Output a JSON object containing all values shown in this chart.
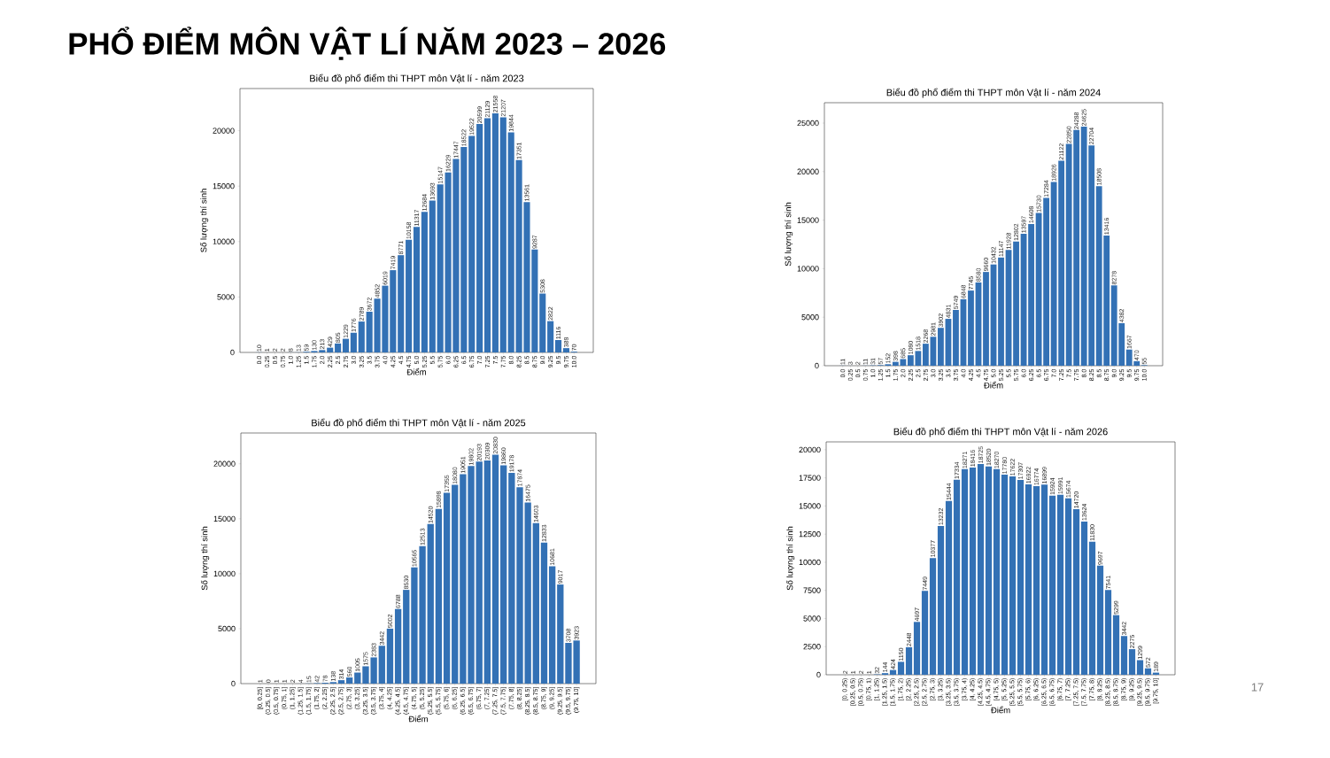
{
  "chart_data": [
    {
      "type": "bar",
      "title": "Biểu đồ phổ điểm thi THPT môn Vật lí - năm 2023",
      "xlabel": "Điểm",
      "ylabel": "Số lượng thí sinh",
      "color": "#3371b5",
      "data_labels": true,
      "ylim": [
        0,
        23800
      ],
      "yticks": [
        0,
        5000,
        10000,
        15000,
        20000
      ],
      "annotations": [
        "PHỔ ĐIỂM MÔN VẬT LÍ NĂM 2023 – 2026"
      ],
      "categories": [
        "0.0",
        "0.25",
        "0.5",
        "0.75",
        "1.0",
        "1.25",
        "1.5",
        "1.75",
        "2.0",
        "2.25",
        "2.5",
        "2.75",
        "3.0",
        "3.25",
        "3.5",
        "3.75",
        "4.0",
        "4.25",
        "4.5",
        "4.75",
        "5.0",
        "5.25",
        "5.5",
        "5.75",
        "6.0",
        "6.25",
        "6.5",
        "6.75",
        "7.0",
        "7.25",
        "7.5",
        "7.75",
        "8.0",
        "8.25",
        "8.5",
        "8.75",
        "9.0",
        "9.25",
        "9.5",
        "9.75",
        "10.0"
      ],
      "values": [
        10,
        1,
        2,
        2,
        8,
        13,
        59,
        130,
        213,
        429,
        805,
        1229,
        1776,
        2789,
        3672,
        4852,
        6019,
        7419,
        8771,
        10158,
        11317,
        12684,
        13693,
        15147,
        16229,
        17447,
        18522,
        19522,
        20599,
        21129,
        21558,
        21207,
        19844,
        17351,
        13561,
        9287,
        5308,
        2822,
        1116,
        388,
        70
      ]
    },
    {
      "type": "bar",
      "title": "Biểu đồ phổ điểm thi THPT môn Vật lí - năm 2024",
      "xlabel": "Điểm",
      "ylabel": "Số lượng thí sinh",
      "color": "#3371b5",
      "data_labels": true,
      "ylim": [
        0,
        27100
      ],
      "yticks": [
        0,
        5000,
        10000,
        15000,
        20000,
        25000
      ],
      "categories": [
        "0.0",
        "0.25",
        "0.5",
        "0.75",
        "1.0",
        "1.25",
        "1.5",
        "1.75",
        "2.0",
        "2.25",
        "2.5",
        "2.75",
        "3.0",
        "3.25",
        "3.5",
        "3.75",
        "4.0",
        "4.25",
        "4.5",
        "4.75",
        "5.0",
        "5.25",
        "5.5",
        "5.75",
        "6.0",
        "6.25",
        "6.5",
        "6.75",
        "7.0",
        "7.25",
        "7.5",
        "7.75",
        "8.0",
        "8.25",
        "8.5",
        "8.75",
        "9.0",
        "9.25",
        "9.5",
        "9.75",
        "10.0"
      ],
      "values": [
        11,
        3,
        2,
        11,
        31,
        57,
        152,
        398,
        685,
        1080,
        1518,
        2268,
        2981,
        3902,
        4831,
        5749,
        6848,
        7745,
        8580,
        9660,
        10432,
        11147,
        11928,
        12802,
        13597,
        14608,
        15730,
        17284,
        18926,
        21122,
        22850,
        24288,
        24625,
        22704,
        18508,
        13416,
        8278,
        4382,
        1667,
        470,
        55
      ]
    },
    {
      "type": "bar",
      "title": "Biểu đồ phổ điểm thi THPT môn Vật lí - năm 2025",
      "xlabel": "Điểm",
      "ylabel": "Số lượng thí sinh",
      "color": "#3371b5",
      "data_labels": true,
      "ylim": [
        0,
        22800
      ],
      "yticks": [
        0,
        5000,
        10000,
        15000,
        20000
      ],
      "categories": [
        "[0, 0.25]",
        "(0.25, 0.5]",
        "(0.5, 0.75]",
        "(0.75, 1]",
        "(1, 1.25]",
        "(1.25, 1.5]",
        "(1.5, 1.75]",
        "(1.75, 2]",
        "(2, 2.25]",
        "(2.25, 2.5]",
        "(2.5, 2.75]",
        "(2.75, 3]",
        "(3, 3.25]",
        "(3.25, 3.5]",
        "(3.5, 3.75]",
        "(3.75, 4]",
        "(4, 4.25]",
        "(4.25, 4.5]",
        "(4.5, 4.75]",
        "(4.75, 5]",
        "(5, 5.25]",
        "(5.25, 5.5]",
        "(5.5, 5.75]",
        "(5.75, 6]",
        "(6, 6.25]",
        "(6.25, 6.5]",
        "(6.5, 6.75]",
        "(6.75, 7]",
        "(7, 7.25]",
        "(7.25, 7.5]",
        "(7.5, 7.75]",
        "(7.75, 8]",
        "(8, 8.25]",
        "(8.25, 8.5]",
        "(8.5, 8.75]",
        "(8.75, 9]",
        "(9, 9.25]",
        "(9.25, 9.5]",
        "(9.5, 9.75]",
        "(9.75, 10]"
      ],
      "values": [
        1,
        0,
        1,
        1,
        2,
        4,
        15,
        42,
        78,
        138,
        314,
        560,
        1005,
        1575,
        2383,
        3442,
        5002,
        6788,
        8530,
        10565,
        12513,
        14520,
        15898,
        17355,
        18080,
        19051,
        19802,
        20193,
        20309,
        20830,
        19860,
        19178,
        17874,
        16475,
        14603,
        12833,
        10681,
        9017,
        3708,
        3923
      ]
    },
    {
      "type": "bar",
      "title": "Biểu đồ phổ điểm thi THPT môn Vật lí - năm 2026",
      "xlabel": "Điểm",
      "ylabel": "Số lượng thí sinh",
      "color": "#3371b5",
      "data_labels": true,
      "ylim": [
        0,
        20700
      ],
      "yticks": [
        0,
        2500,
        5000,
        7500,
        10000,
        12500,
        15000,
        17500,
        20000
      ],
      "annotations": [
        "17"
      ],
      "categories": [
        "[0, 0.25)",
        "[0.25, 0.5)",
        "[0.5, 0.75)",
        "[0.75, 1)",
        "[1, 1.25)",
        "[1.25, 1.5)",
        "[1.5, 1.75)",
        "[1.75, 2)",
        "[2, 2.25)",
        "[2.25, 2.5)",
        "[2.5, 2.75)",
        "[2.75, 3)",
        "[3, 3.25)",
        "[3.25, 3.5)",
        "[3.5, 3.75)",
        "[3.75, 4)",
        "[4, 4.25)",
        "[4.25, 4.5)",
        "[4.5, 4.75)",
        "[4.75, 5)",
        "[5, 5.25)",
        "[5.25, 5.5)",
        "[5.5, 5.75)",
        "[5.75, 6)",
        "[6, 6.25)",
        "[6.25, 6.5)",
        "[6.5, 6.75)",
        "[6.75, 7)",
        "[7, 7.25)",
        "[7.25, 7.5)",
        "[7.5, 7.75)",
        "[7.75, 8)",
        "[8, 8.25)",
        "[8.25, 8.5)",
        "[8.5, 8.75)",
        "[8.75, 9)",
        "[9, 9.25)",
        "[9.25, 9.5)",
        "[9.5, 9.75)",
        "[9.75, 10]"
      ],
      "values": [
        2,
        1,
        2,
        1,
        32,
        144,
        424,
        1150,
        2448,
        4697,
        7449,
        10377,
        13232,
        15444,
        17334,
        18271,
        18416,
        18725,
        18520,
        18270,
        17780,
        17622,
        17307,
        16922,
        16774,
        16899,
        15924,
        15991,
        15674,
        14720,
        13624,
        11830,
        9697,
        7541,
        5299,
        3442,
        2275,
        1299,
        572,
        189
      ]
    }
  ]
}
